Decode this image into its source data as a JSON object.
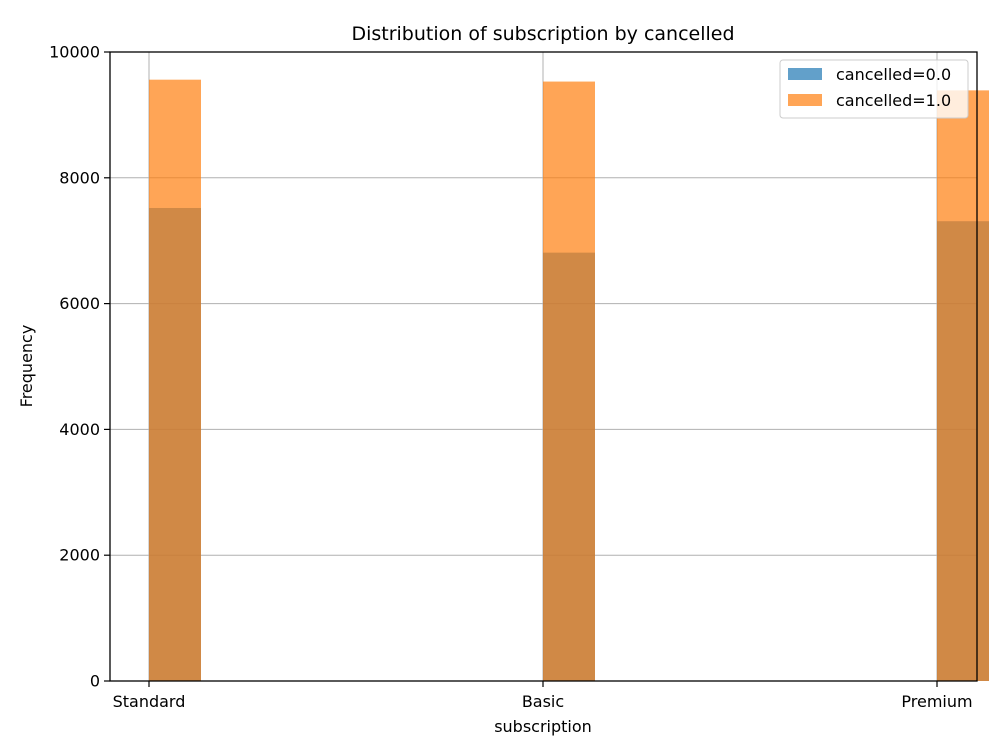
{
  "chart_data": {
    "type": "bar",
    "title": "Distribution of subscription by cancelled",
    "xlabel": "subscription",
    "ylabel": "Frequency",
    "categories": [
      "Standard",
      "Basic",
      "Premium"
    ],
    "ylim": [
      0,
      10000
    ],
    "yticks": [
      0,
      2000,
      4000,
      6000,
      8000,
      10000
    ],
    "grid": true,
    "legend_position": "top-right",
    "overlay": true,
    "bar_alpha": 0.7,
    "series": [
      {
        "name": "cancelled=0.0",
        "color": "#1f77b4",
        "values": [
          7520,
          6810,
          7310
        ]
      },
      {
        "name": "cancelled=1.0",
        "color": "#ff7f0e",
        "values": [
          9560,
          9530,
          9390
        ]
      }
    ]
  }
}
